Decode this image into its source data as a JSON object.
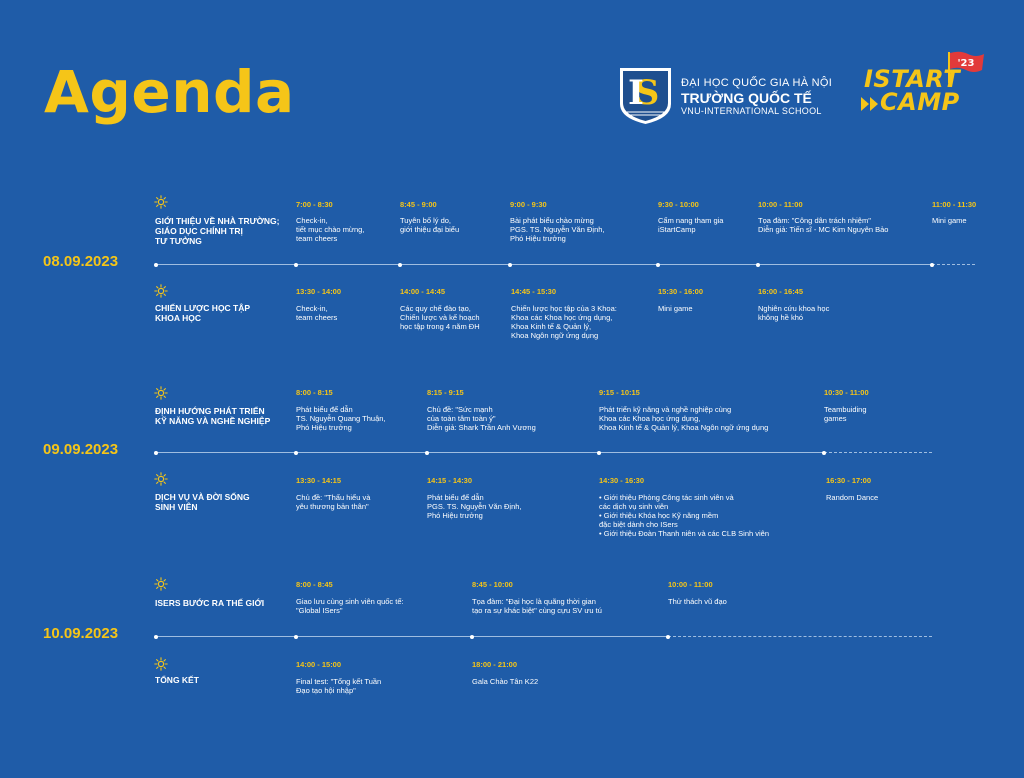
{
  "title": "Agenda",
  "school": {
    "line1": "ĐẠI HỌC QUỐC GIA HÀ NỘI",
    "line2": "TRƯỜNG QUỐC TẾ",
    "line3": "VNU-INTERNATIONAL SCHOOL"
  },
  "camp": {
    "word1": "ISTART",
    "word2": "CAMP",
    "year": "'23"
  },
  "days": [
    {
      "date": "08.09.2023",
      "blocks": [
        {
          "session": "GIỚI THIỆU VỀ NHÀ TRƯỜNG;\nGIÁO DỤC CHÍNH TRỊ\nTƯ TƯỞNG",
          "items": [
            {
              "time": "7:00 - 8:30",
              "desc": "Check-in,\ntiết mục chào mừng,\nteam cheers"
            },
            {
              "time": "8:45 - 9:00",
              "desc": "Tuyên bố lý do,\ngiới thiệu đại biểu"
            },
            {
              "time": "9:00 - 9:30",
              "desc": "Bài phát biểu chào mừng\nPGS. TS. Nguyễn Văn Định,\nPhó Hiệu trưởng"
            },
            {
              "time": "9:30 - 10:00",
              "desc": "Cẩm nang tham gia\niStartCamp"
            },
            {
              "time": "10:00 - 11:00",
              "desc": "Tọa đàm: \"Công dân trách nhiệm\"\nDiễn giả: Tiến sĩ - MC Kim Nguyên Bảo"
            },
            {
              "time": "11:00 - 11:30",
              "desc": "Mini game"
            }
          ]
        },
        {
          "session": "CHIẾN LƯỢC HỌC TẬP\nKHOA HỌC",
          "items": [
            {
              "time": "13:30 - 14:00",
              "desc": "Check-in,\nteam cheers"
            },
            {
              "time": "14:00 - 14:45",
              "desc": "Các quy chế đào tạo,\nChiến lược và kế hoạch\nhọc tập trong 4 năm ĐH"
            },
            {
              "time": "14:45 - 15:30",
              "desc": "Chiến lược học tập của 3 Khoa:\nKhoa các Khoa học ứng dụng,\nKhoa Kinh tế & Quản lý,\nKhoa Ngôn ngữ ứng dụng"
            },
            {
              "time": "15:30 - 16:00",
              "desc": "Mini game"
            },
            {
              "time": "16:00 - 16:45",
              "desc": "Nghiên cứu khoa học\nkhông hề khó"
            }
          ]
        }
      ]
    },
    {
      "date": "09.09.2023",
      "blocks": [
        {
          "session": "ĐỊNH HƯỚNG PHÁT TRIỂN\nKỸ NĂNG VÀ NGHỀ NGHIỆP",
          "items": [
            {
              "time": "8:00 - 8:15",
              "desc": "Phát biểu để dẫn\nTS. Nguyễn Quang Thuận,\nPhó Hiệu trưởng"
            },
            {
              "time": "8:15 - 9:15",
              "desc": "Chủ đề: \"Sức mạnh\ncủa toàn tâm toàn ý\"\nDiễn giả: Shark Trần Anh Vương"
            },
            {
              "time": "9:15 - 10:15",
              "desc": "Phát triển kỹ năng và nghề nghiệp cùng\nKhoa các Khoa học ứng dụng,\nKhoa Kinh tế & Quản lý, Khoa Ngôn ngữ ứng dụng"
            },
            {
              "time": "10:30 - 11:00",
              "desc": "Teambuiding\ngames"
            }
          ]
        },
        {
          "session": "DỊCH VỤ VÀ ĐỜI SỐNG\nSINH VIÊN",
          "items": [
            {
              "time": "13:30 - 14:15",
              "desc": "Chủ đề: \"Thấu hiểu và\nyêu thương bản thân\""
            },
            {
              "time": "14:15 - 14:30",
              "desc": "Phát biểu để dẫn\nPGS. TS. Nguyễn Văn Định,\nPhó Hiệu trưởng"
            },
            {
              "time": "14:30 - 16:30",
              "desc": "• Giới thiệu Phòng Công tác sinh viên và\n   các dịch vụ sinh viên\n• Giới thiệu Khóa học Kỹ năng mềm\n   đặc biệt dành cho ISers\n• Giới thiệu Đoàn Thanh niên và các CLB Sinh viên"
            },
            {
              "time": "16:30 - 17:00",
              "desc": "Random Dance"
            }
          ]
        }
      ]
    },
    {
      "date": "10.09.2023",
      "blocks": [
        {
          "session": "ISERS BƯỚC RA THẾ GIỚI",
          "items": [
            {
              "time": "8:00 - 8:45",
              "desc": "Giao lưu cùng sinh viên quốc tế:\n\"Global ISers\""
            },
            {
              "time": "8:45 - 10:00",
              "desc": "Tọa đàm: \"Đại học là quãng thời gian\ntạo ra sự khác biệt\" cùng cựu SV ưu tú"
            },
            {
              "time": "10:00 - 11:00",
              "desc": "Thử thách vũ đạo"
            }
          ]
        },
        {
          "session": "TỔNG KẾT",
          "items": [
            {
              "time": "14:00 - 15:00",
              "desc": "Final test: \"Tổng kết Tuần\nĐạo tạo hội nhập\""
            },
            {
              "time": "18:00 - 21:00",
              "desc": "Gala Chào Tân K22"
            }
          ]
        }
      ]
    }
  ]
}
